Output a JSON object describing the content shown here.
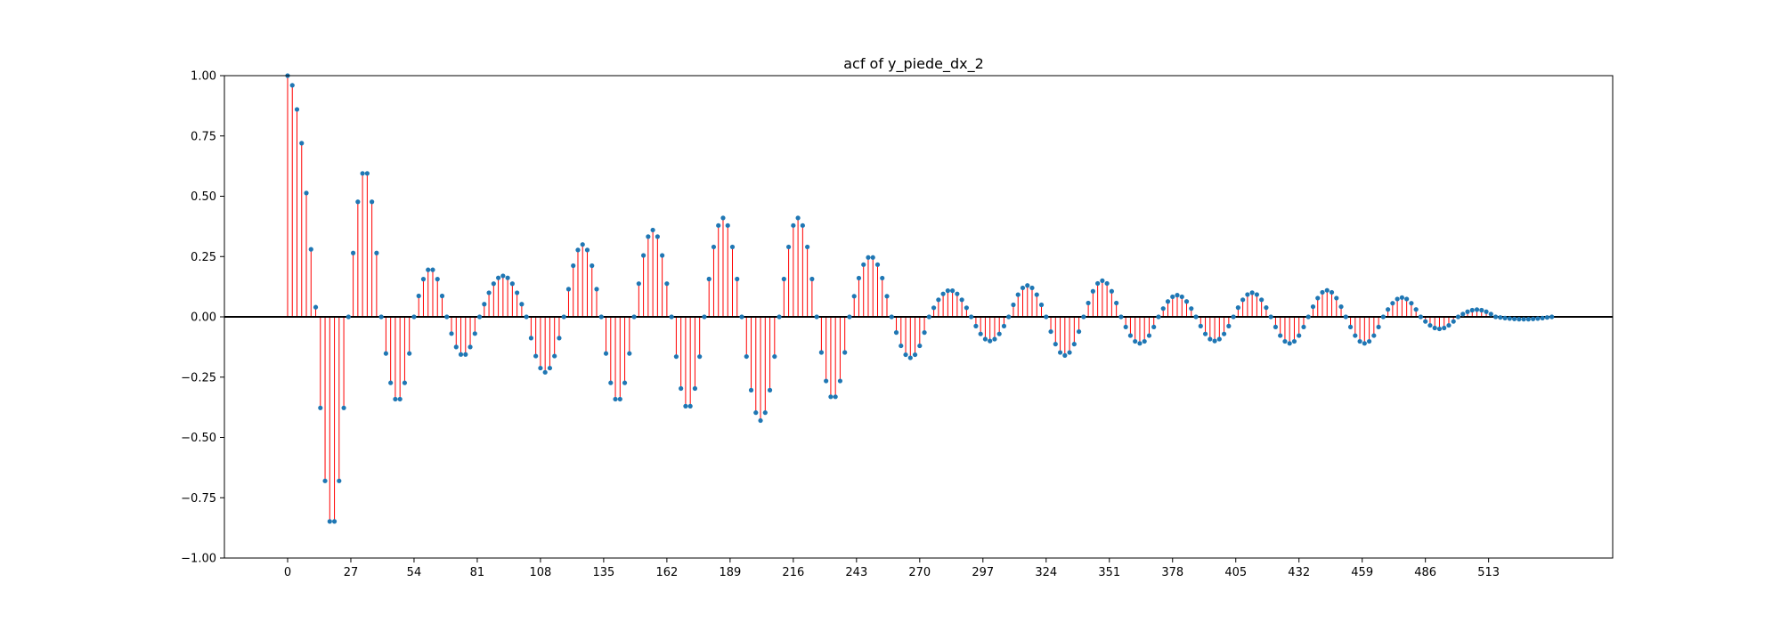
{
  "chart_data": {
    "type": "stem",
    "title": "acf of y_piede_dx_2",
    "xlabel": "",
    "ylabel": "",
    "xlim": [
      -27,
      566
    ],
    "ylim": [
      -1.0,
      1.0
    ],
    "xticks": [
      0,
      27,
      54,
      81,
      108,
      135,
      162,
      189,
      216,
      243,
      270,
      297,
      324,
      351,
      378,
      405,
      432,
      459,
      486,
      513
    ],
    "yticks": [
      -1.0,
      -0.75,
      -0.5,
      -0.25,
      0.0,
      0.25,
      0.5,
      0.75,
      1.0
    ],
    "ytick_labels": [
      "−1.00",
      "−0.75",
      "−0.50",
      "−0.25",
      "0.00",
      "0.25",
      "0.50",
      "0.75",
      "1.00"
    ],
    "lag_step": 2,
    "max_lag": 540,
    "grid": false,
    "colors": {
      "stem": "#ff0000",
      "marker": "#1f77b4",
      "baseline": "#000000"
    },
    "acf_envelope": {
      "description_units": "amplitude and period in lag units",
      "segments": [
        {
          "lag_start": 0,
          "lag_end": 12,
          "shape": "decay",
          "values": [
            1.0,
            0.98,
            0.92,
            0.83,
            0.72,
            0.57,
            0.4,
            0.22,
            0.04
          ]
        },
        {
          "lag_start": 12,
          "lag_end": 26,
          "peak": -0.87
        },
        {
          "lag_start": 26,
          "lag_end": 40,
          "peak": 0.61
        },
        {
          "lag_start": 40,
          "lag_end": 54,
          "peak": -0.35
        },
        {
          "lag_start": 54,
          "lag_end": 68,
          "peak": 0.2
        },
        {
          "lag_start": 68,
          "lag_end": 82,
          "peak": -0.16
        },
        {
          "lag_start": 82,
          "lag_end": 102,
          "peak": 0.17
        },
        {
          "lag_start": 102,
          "lag_end": 118,
          "peak": -0.23
        },
        {
          "lag_start": 118,
          "lag_end": 134,
          "peak": 0.3
        },
        {
          "lag_start": 134,
          "lag_end": 148,
          "peak": -0.35
        },
        {
          "lag_start": 148,
          "lag_end": 164,
          "peak": 0.36
        },
        {
          "lag_start": 164,
          "lag_end": 178,
          "peak": -0.38
        },
        {
          "lag_start": 178,
          "lag_end": 194,
          "peak": 0.41
        },
        {
          "lag_start": 194,
          "lag_end": 210,
          "peak": -0.43
        },
        {
          "lag_start": 210,
          "lag_end": 226,
          "peak": 0.41
        },
        {
          "lag_start": 226,
          "lag_end": 240,
          "peak": -0.34
        },
        {
          "lag_start": 240,
          "lag_end": 258,
          "peak": 0.25
        },
        {
          "lag_start": 258,
          "lag_end": 274,
          "peak": -0.17
        },
        {
          "lag_start": 274,
          "lag_end": 292,
          "peak": 0.11
        },
        {
          "lag_start": 292,
          "lag_end": 308,
          "peak": -0.1
        },
        {
          "lag_start": 308,
          "lag_end": 324,
          "peak": 0.13
        },
        {
          "lag_start": 324,
          "lag_end": 340,
          "peak": -0.16
        },
        {
          "lag_start": 340,
          "lag_end": 356,
          "peak": 0.15
        },
        {
          "lag_start": 356,
          "lag_end": 372,
          "peak": -0.11
        },
        {
          "lag_start": 372,
          "lag_end": 388,
          "peak": 0.09
        },
        {
          "lag_start": 388,
          "lag_end": 404,
          "peak": -0.1
        },
        {
          "lag_start": 404,
          "lag_end": 420,
          "peak": 0.1
        },
        {
          "lag_start": 420,
          "lag_end": 436,
          "peak": -0.11
        },
        {
          "lag_start": 436,
          "lag_end": 452,
          "peak": 0.11
        },
        {
          "lag_start": 452,
          "lag_end": 468,
          "peak": -0.11
        },
        {
          "lag_start": 468,
          "lag_end": 484,
          "peak": 0.08
        },
        {
          "lag_start": 484,
          "lag_end": 500,
          "peak": -0.05
        },
        {
          "lag_start": 500,
          "lag_end": 516,
          "peak": 0.03
        },
        {
          "lag_start": 516,
          "lag_end": 540,
          "peak": -0.01
        }
      ]
    }
  }
}
